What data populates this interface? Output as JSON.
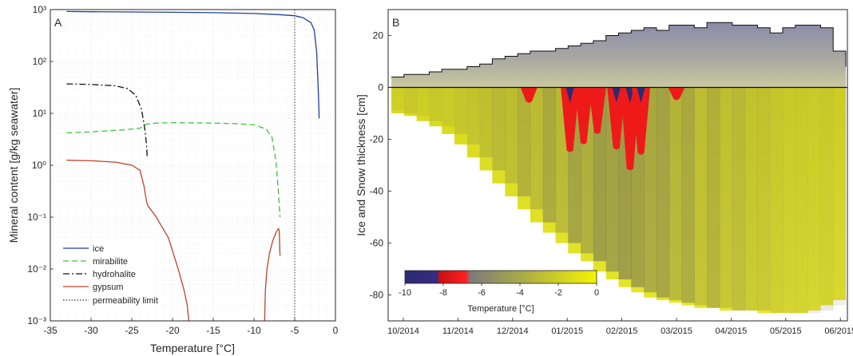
{
  "chart_data": [
    {
      "panel_label": "A",
      "type": "line",
      "xlabel": "Temperature [°C]",
      "ylabel": "Mineral content [g/kg seawater]",
      "xlim": [
        -35,
        0
      ],
      "ylim": [
        0.001,
        1000
      ],
      "yscale": "log",
      "grid": true,
      "legend_position": "bottom-left",
      "x_ticks": [
        "-35",
        "-30",
        "-25",
        "-20",
        "-15",
        "-10",
        "-5",
        "0"
      ],
      "y_ticks": [
        "10³",
        "10²",
        "10¹",
        "10⁰",
        "10⁻¹",
        "10⁻²",
        "10⁻³"
      ],
      "series": [
        {
          "name": "ice",
          "color": "#1f3f9f",
          "dash": "solid",
          "x": [
            -33,
            -30,
            -25,
            -20,
            -15,
            -10,
            -7,
            -5,
            -4,
            -3,
            -2.6,
            -2.3,
            -2.15,
            -2.05,
            -2.0
          ],
          "y": [
            920,
            910,
            900,
            885,
            870,
            840,
            800,
            760,
            700,
            560,
            400,
            150,
            40,
            15,
            8
          ]
        },
        {
          "name": "mirabilite",
          "color": "#3cc43c",
          "dash": "dashed",
          "x": [
            -33,
            -30,
            -26,
            -24,
            -23.2,
            -22,
            -20,
            -15,
            -12,
            -10,
            -8.5,
            -7.8,
            -7.3,
            -7.0,
            -6.8
          ],
          "y": [
            4.2,
            4.4,
            4.8,
            5.2,
            6.2,
            6.5,
            6.6,
            6.5,
            6.3,
            6.0,
            5.0,
            3.5,
            1.2,
            0.3,
            0.1
          ]
        },
        {
          "name": "hydrohalite",
          "color": "#111111",
          "dash": "dashdot",
          "x": [
            -33,
            -30,
            -27,
            -25.5,
            -24.5,
            -23.8,
            -23.4,
            -23.2,
            -23.1
          ],
          "y": [
            37,
            36,
            34,
            30,
            22,
            12,
            5,
            2.5,
            1.4
          ]
        },
        {
          "name": "gypsum",
          "color": "#c0432b",
          "dash": "solid",
          "x": [
            -33,
            -30,
            -27,
            -25,
            -24,
            -23.5,
            -23.2,
            -23.0,
            -22.8,
            -22,
            -20.5,
            -19.3,
            -18.6,
            -18.2,
            -18.0
          ],
          "y": [
            1.25,
            1.22,
            1.15,
            1.0,
            0.8,
            0.4,
            0.2,
            0.16,
            0.15,
            0.1,
            0.04,
            0.01,
            0.004,
            0.002,
            0.001
          ]
        },
        {
          "name": "gypsum",
          "color": "#c0432b",
          "dash": "solid",
          "legend": false,
          "x": [
            -8.7,
            -8.6,
            -8.4,
            -8.1,
            -7.7,
            -7.3,
            -7.0,
            -6.9,
            -6.85,
            -6.8
          ],
          "y": [
            0.001,
            0.004,
            0.01,
            0.02,
            0.035,
            0.05,
            0.06,
            0.055,
            0.03,
            0.018
          ]
        }
      ],
      "annotations": [
        {
          "name": "permeability limit",
          "type": "vline",
          "x": -5,
          "color": "#333333",
          "dash": "dotted"
        }
      ]
    },
    {
      "panel_label": "B",
      "type": "heatmap",
      "ylabel": "Ice and Snow thickness [cm]",
      "ylim": [
        -90,
        30
      ],
      "y_ticks": [
        "20",
        "0",
        "-20",
        "-40",
        "-60",
        "-80"
      ],
      "x_ticks": [
        "10/2014",
        "11/2014",
        "12/2014",
        "01/2015",
        "02/2015",
        "03/2015",
        "04/2015",
        "05/2015",
        "06/2015"
      ],
      "colorbar": {
        "label": "Temperature [°C]",
        "ticks": [
          "-10",
          "-8",
          "-6",
          "-4",
          "-2",
          "0"
        ],
        "range": [
          -10,
          0
        ],
        "colors": [
          "#2b2b72",
          "#dd1010",
          "#808080",
          "#f0f000"
        ]
      },
      "snow_surface_cm": [
        4,
        5,
        5,
        6,
        7,
        7,
        8,
        9,
        11,
        12,
        13,
        14,
        14,
        15,
        16,
        17,
        18,
        20,
        21,
        22,
        23,
        22,
        24,
        24,
        23,
        25,
        25,
        24,
        24,
        23,
        21,
        23,
        24,
        24,
        23,
        14,
        8
      ],
      "ice_bottom_cm": [
        -9,
        -10,
        -11,
        -13,
        -15,
        -18,
        -22,
        -27,
        -32,
        -37,
        -42,
        -47,
        -52,
        -56,
        -60,
        -64,
        -67,
        -71,
        -74,
        -77,
        -79,
        -81,
        -82,
        -83,
        -84,
        -85,
        -85,
        -86,
        -86,
        -86,
        -87,
        -87,
        -87,
        -87,
        -86,
        -84,
        -82
      ],
      "cold_events": [
        {
          "month_pos": 2.3,
          "min_temp_c": -7,
          "depth_cm": -6
        },
        {
          "month_pos": 3.05,
          "min_temp_c": -9,
          "depth_cm": -25
        },
        {
          "month_pos": 3.3,
          "min_temp_c": -8,
          "depth_cm": -22
        },
        {
          "month_pos": 3.55,
          "min_temp_c": -8,
          "depth_cm": -18
        },
        {
          "month_pos": 3.9,
          "min_temp_c": -9,
          "depth_cm": -24
        },
        {
          "month_pos": 4.15,
          "min_temp_c": -10,
          "depth_cm": -32
        },
        {
          "month_pos": 4.35,
          "min_temp_c": -9,
          "depth_cm": -26
        },
        {
          "month_pos": 5.0,
          "min_temp_c": -7,
          "depth_cm": -5
        }
      ]
    }
  ]
}
